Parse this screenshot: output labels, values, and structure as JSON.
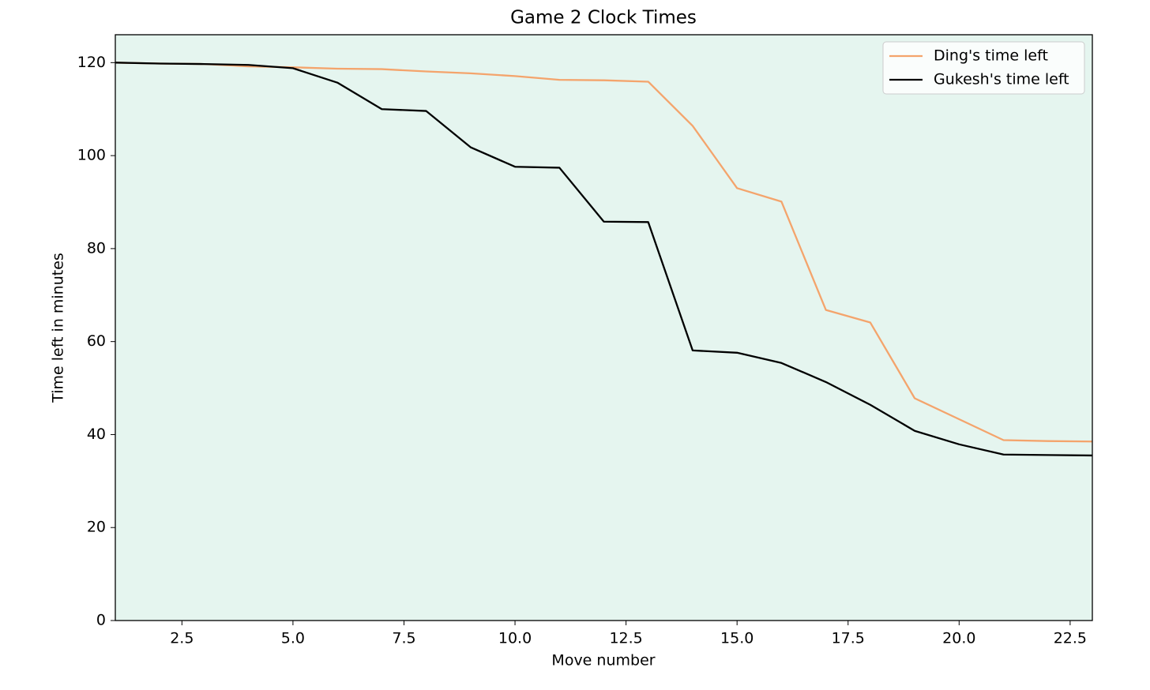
{
  "chart_data": {
    "type": "line",
    "title": "Game 2 Clock Times",
    "x_label": "Move number",
    "y_label": "Time left in minutes",
    "x": [
      1,
      2,
      3,
      4,
      5,
      6,
      7,
      8,
      9,
      10,
      11,
      12,
      13,
      14,
      15,
      16,
      17,
      18,
      19,
      20,
      21,
      22,
      23
    ],
    "series": [
      {
        "name": "Ding's time left",
        "color": "#f4a46c",
        "values": [
          120,
          119.8,
          119.7,
          119.2,
          119,
          118.7,
          118.6,
          118.1,
          117.7,
          117.1,
          116.3,
          116.2,
          115.9,
          106.4,
          93,
          90.1,
          66.8,
          64.1,
          47.8,
          43.3,
          38.8,
          38.6,
          38.5
        ]
      },
      {
        "name": "Gukesh's time left",
        "color": "#000000",
        "values": [
          120,
          119.8,
          119.7,
          119.5,
          118.8,
          115.7,
          110,
          109.6,
          101.8,
          97.6,
          97.4,
          85.8,
          85.7,
          58.1,
          57.6,
          55.4,
          51.3,
          46.4,
          40.8,
          37.9,
          35.7,
          35.6,
          35.5
        ]
      }
    ],
    "xlim": [
      1,
      23
    ],
    "ylim": [
      0,
      126
    ],
    "xticks": [
      2.5,
      {
        "value": 5,
        "label": "5.0"
      },
      7.5,
      {
        "value": 10,
        "label": "10.0"
      },
      12.5,
      {
        "value": 15,
        "label": "15.0"
      },
      17.5,
      {
        "value": 20,
        "label": "20.0"
      },
      22.5
    ],
    "yticks": [
      0,
      20,
      40,
      60,
      80,
      100,
      120
    ],
    "background": "#e5f5ef",
    "grid": false,
    "legend": "upper right"
  }
}
